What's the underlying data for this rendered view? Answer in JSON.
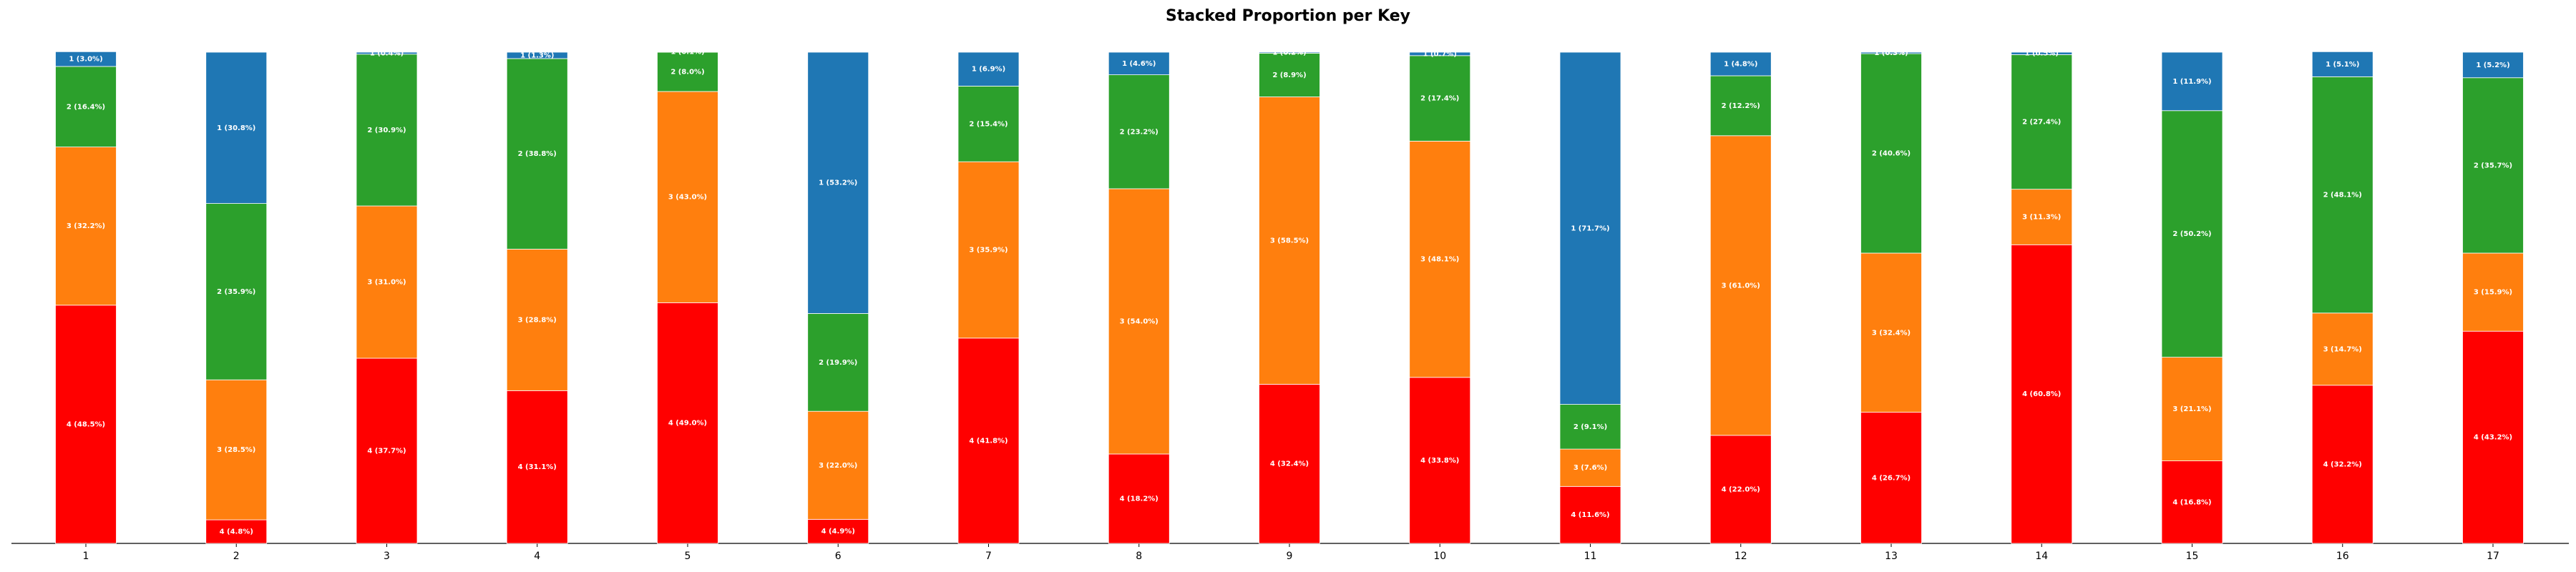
{
  "chart_data": {
    "type": "stacked_bar",
    "title": "Stacked Proportion per Key",
    "categories": [
      "1",
      "2",
      "3",
      "4",
      "5",
      "6",
      "7",
      "8",
      "9",
      "10",
      "11",
      "12",
      "13",
      "14",
      "15",
      "16",
      "17"
    ],
    "ylim": [
      0,
      100
    ],
    "series": [
      {
        "name": "4",
        "color": "#ff0000",
        "values": [
          48.5,
          4.8,
          37.7,
          31.1,
          49.0,
          4.9,
          41.8,
          18.2,
          32.4,
          33.8,
          11.6,
          22.0,
          26.7,
          60.8,
          16.8,
          32.2,
          43.2
        ],
        "value_labels": [
          "4 (48.5%)",
          "4 (4.8%)",
          "4 (37.7%)",
          "4 (31.1%)",
          "4 (49.0%)",
          "4 (4.9%)",
          "4 (41.8%)",
          "4 (18.2%)",
          "4 (32.4%)",
          "4 (33.8%)",
          "4 (11.6%)",
          "4 (22.0%)",
          "4 (26.7%)",
          "4 (60.8%)",
          "4 (16.8%)",
          "4 (32.2%)",
          "4 (43.2%)"
        ]
      },
      {
        "name": "3",
        "color": "#ff7f0e",
        "values": [
          32.2,
          28.5,
          31.0,
          28.8,
          43.0,
          22.0,
          35.9,
          54.0,
          58.5,
          48.1,
          7.6,
          61.0,
          32.4,
          11.3,
          21.1,
          14.7,
          15.9
        ],
        "value_labels": [
          "3 (32.2%)",
          "3 (28.5%)",
          "3 (31.0%)",
          "3 (28.8%)",
          "3 (43.0%)",
          "3 (22.0%)",
          "3 (35.9%)",
          "3 (54.0%)",
          "3 (58.5%)",
          "3 (48.1%)",
          "3 (7.6%)",
          "3 (61.0%)",
          "3 (32.4%)",
          "3 (11.3%)",
          "3 (21.1%)",
          "3 (14.7%)",
          "3 (15.9%)"
        ]
      },
      {
        "name": "2",
        "color": "#2ca02c",
        "values": [
          16.4,
          35.9,
          30.9,
          38.8,
          8.0,
          19.9,
          15.4,
          23.2,
          8.9,
          17.4,
          9.1,
          12.2,
          40.6,
          27.4,
          50.2,
          48.1,
          35.7
        ],
        "value_labels": [
          "2 (16.4%)",
          "2 (35.9%)",
          "2 (30.9%)",
          "2 (38.8%)",
          "2 (8.0%)",
          "2 (19.9%)",
          "2 (15.4%)",
          "2 (23.2%)",
          "2 (8.9%)",
          "2 (17.4%)",
          "2 (9.1%)",
          "2 (12.2%)",
          "2 (40.6%)",
          "2 (27.4%)",
          "2 (50.2%)",
          "2 (48.1%)",
          "2 (35.7%)"
        ]
      },
      {
        "name": "1",
        "color": "#1f77b4",
        "values": [
          3.0,
          30.8,
          0.4,
          1.3,
          0.1,
          53.2,
          6.9,
          4.6,
          0.2,
          0.7,
          71.7,
          4.8,
          0.3,
          0.5,
          11.9,
          5.1,
          5.2
        ],
        "value_labels": [
          "1 (3.0%)",
          "1 (30.8%)",
          "1 (0.4%)",
          "1 (1.3%)",
          "1 (0.1%)",
          "1 (53.2%)",
          "1 (6.9%)",
          "1 (4.6%)",
          "1 (0.2%)",
          "1 (0.7%)",
          "1 (71.7%)",
          "1 (4.8%)",
          "1 (0.3%)",
          "1 (0.5%)",
          "1 (11.9%)",
          "1 (5.1%)",
          "1 (5.2%)"
        ]
      }
    ]
  }
}
